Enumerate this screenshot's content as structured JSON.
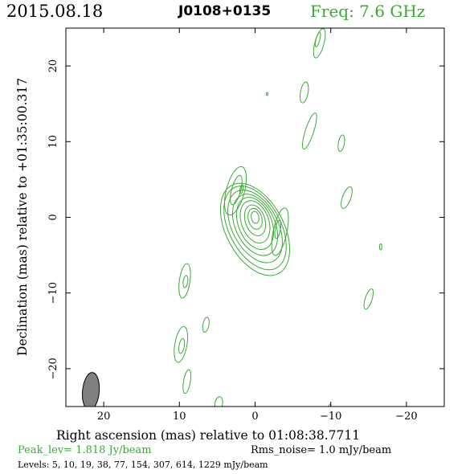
{
  "header": {
    "date": "2015.08.18",
    "source": "J0108+0135",
    "frequency": "Freq: 7.6 GHz"
  },
  "footer": {
    "peak": "Peak_lev=  1.818 Jy/beam",
    "rms": "Rms_noise=  1.0 mJy/beam",
    "levels": "Levels:   5,  10,  19,  38,  77, 154, 307, 614, 1229 mJy/beam"
  },
  "colors": {
    "contour": "#3aaa35",
    "beam_fill": "#808080",
    "axis": "#000000"
  },
  "chart_data": {
    "type": "contour",
    "xlabel": "Right ascension (mas) relative to 01:08:38.7711",
    "ylabel": "Declination (mas) relative to +01:35:00.317",
    "xlim": [
      25,
      -25
    ],
    "ylim": [
      -25,
      25
    ],
    "x_ticks": [
      20,
      10,
      0,
      -10,
      -20
    ],
    "x_tick_labels": [
      "20",
      "10",
      "0",
      "−10",
      "−20"
    ],
    "y_ticks": [
      20,
      10,
      0,
      -10,
      -20
    ],
    "y_tick_labels": [
      "20",
      "10",
      "0",
      "−10",
      "−20"
    ],
    "contour_levels_mJy": [
      5,
      10,
      19,
      38,
      77,
      154,
      307,
      614,
      1229
    ],
    "peak_Jy_per_beam": 1.818,
    "rms_mJy_per_beam": 1.0,
    "core": {
      "ra": 0,
      "dec": 0,
      "ra_offset_per_level": -0.15,
      "dec_offset_per_level": -0.4,
      "contours": [
        {
          "level": 5,
          "ra_half": 3.8,
          "dec_half": 6.6,
          "angle": -28
        },
        {
          "level": 10,
          "ra_half": 3.4,
          "dec_half": 6.0,
          "angle": -28
        },
        {
          "level": 19,
          "ra_half": 3.0,
          "dec_half": 5.2,
          "angle": -28
        },
        {
          "level": 38,
          "ra_half": 2.6,
          "dec_half": 4.3,
          "angle": -25
        },
        {
          "level": 77,
          "ra_half": 2.2,
          "dec_half": 3.6,
          "angle": -22
        },
        {
          "level": 154,
          "ra_half": 1.8,
          "dec_half": 2.9,
          "angle": -20
        },
        {
          "level": 307,
          "ra_half": 1.3,
          "dec_half": 2.1,
          "angle": -18
        },
        {
          "level": 614,
          "ra_half": 0.9,
          "dec_half": 1.4,
          "angle": -15
        },
        {
          "level": 1229,
          "ra_half": 0.5,
          "dec_half": 0.8,
          "angle": -10
        }
      ]
    },
    "features": [
      {
        "ra": 2.6,
        "dec": 3.5,
        "ra_half": 1.2,
        "dec_half": 3.3,
        "angle": 15
      },
      {
        "ra": 2.5,
        "dec": 3.6,
        "ra_half": 0.6,
        "dec_half": 2.0,
        "angle": 15
      },
      {
        "ra": -3.3,
        "dec": -1.9,
        "ra_half": 0.9,
        "dec_half": 3.2,
        "angle": 12
      },
      {
        "ra": -3.0,
        "dec": -1.6,
        "ra_half": 0.35,
        "dec_half": 1.2,
        "angle": 10
      },
      {
        "ra": 1.8,
        "dec": 3.7,
        "ra_half": 0.2,
        "dec_half": 0.6,
        "angle": 10
      },
      {
        "ra": -8.5,
        "dec": 23.0,
        "ra_half": 0.6,
        "dec_half": 2.0,
        "angle": 15
      },
      {
        "ra": -8.3,
        "dec": 23.5,
        "ra_half": 0.25,
        "dec_half": 1.0,
        "angle": 15
      },
      {
        "ra": -6.5,
        "dec": 16.5,
        "ra_half": 0.5,
        "dec_half": 1.4,
        "angle": 10
      },
      {
        "ra": -1.6,
        "dec": 16.3,
        "ra_half": 0.1,
        "dec_half": 0.2,
        "angle": 0
      },
      {
        "ra": -7.2,
        "dec": 11.4,
        "ra_half": 0.55,
        "dec_half": 2.5,
        "angle": 18
      },
      {
        "ra": -11.4,
        "dec": 9.8,
        "ra_half": 0.4,
        "dec_half": 1.1,
        "angle": 10
      },
      {
        "ra": -12.1,
        "dec": 2.6,
        "ra_half": 0.55,
        "dec_half": 1.5,
        "angle": 20
      },
      {
        "ra": -16.6,
        "dec": -3.9,
        "ra_half": 0.15,
        "dec_half": 0.4,
        "angle": 0
      },
      {
        "ra": 9.3,
        "dec": -8.4,
        "ra_half": 0.7,
        "dec_half": 2.3,
        "angle": 8
      },
      {
        "ra": 9.2,
        "dec": -8.5,
        "ra_half": 0.3,
        "dec_half": 0.8,
        "angle": 8
      },
      {
        "ra": -15.0,
        "dec": -10.8,
        "ra_half": 0.45,
        "dec_half": 1.4,
        "angle": 18
      },
      {
        "ra": 6.5,
        "dec": -14.2,
        "ra_half": 0.4,
        "dec_half": 1.0,
        "angle": 10
      },
      {
        "ra": 9.8,
        "dec": -16.8,
        "ra_half": 0.8,
        "dec_half": 2.4,
        "angle": 10
      },
      {
        "ra": 9.7,
        "dec": -17.0,
        "ra_half": 0.35,
        "dec_half": 1.0,
        "angle": 10
      },
      {
        "ra": 9.0,
        "dec": -21.7,
        "ra_half": 0.45,
        "dec_half": 1.6,
        "angle": 10
      },
      {
        "ra": 4.8,
        "dec": -24.6,
        "ra_half": 0.5,
        "dec_half": 0.9,
        "angle": 10
      },
      {
        "ra": -9.9,
        "dec": -25.0,
        "ra_half": 0.15,
        "dec_half": 0.3,
        "angle": 0
      }
    ],
    "beam": {
      "ra": 21.7,
      "dec": -23.0,
      "major_mas": 2.5,
      "minor_mas": 1.1,
      "angle": 5
    }
  }
}
